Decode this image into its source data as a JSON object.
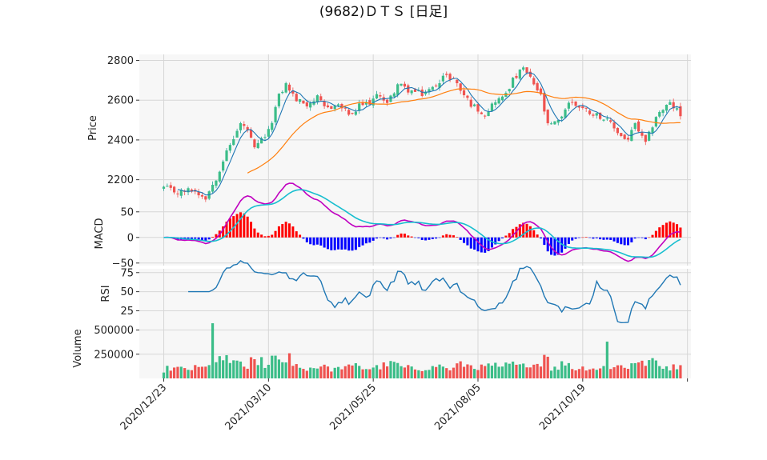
{
  "title": "(9682)ＤＴＳ [日足]",
  "colors": {
    "up": "#26a69a",
    "up_fill": "#3bbd88",
    "down": "#ef5350",
    "ma_short": "#1f77b4",
    "ma_long": "#ff7f0e",
    "macd": "#c000c0",
    "signal": "#17becf",
    "hist_pos": "#ff0000",
    "hist_neg": "#0000ff",
    "rsi": "#1f77b4",
    "vol_up": "#3bbd88",
    "vol_down": "#ef5350",
    "grid": "#d7d7d7",
    "panel_bg": "#f7f7f7"
  },
  "chart_data": [
    {
      "type": "candlestick",
      "name": "price",
      "ylabel": "Price",
      "ylim": [
        2090,
        2830
      ],
      "yticks": [
        2200,
        2400,
        2600,
        2800
      ],
      "xlim": [
        -7,
        151
      ],
      "xticks": [
        {
          "i": 0,
          "label": "2020/12/23"
        },
        {
          "i": 30,
          "label": "2021/03/10"
        },
        {
          "i": 60,
          "label": "2021/05/25"
        },
        {
          "i": 90,
          "label": "2021/08/05"
        },
        {
          "i": 120,
          "label": "2021/10/19"
        },
        {
          "i": 150,
          "label": ""
        }
      ],
      "close_anchors": [
        [
          0,
          2160
        ],
        [
          4,
          2135
        ],
        [
          8,
          2150
        ],
        [
          10,
          2130
        ],
        [
          12,
          2112
        ],
        [
          15,
          2210
        ],
        [
          17,
          2300
        ],
        [
          20,
          2410
        ],
        [
          22,
          2480
        ],
        [
          24,
          2450
        ],
        [
          26,
          2350
        ],
        [
          28,
          2400
        ],
        [
          30,
          2440
        ],
        [
          33,
          2620
        ],
        [
          35,
          2680
        ],
        [
          38,
          2600
        ],
        [
          41,
          2580
        ],
        [
          44,
          2610
        ],
        [
          46,
          2560
        ],
        [
          50,
          2575
        ],
        [
          54,
          2520
        ],
        [
          56,
          2570
        ],
        [
          59,
          2590
        ],
        [
          62,
          2630
        ],
        [
          64,
          2580
        ],
        [
          67,
          2680
        ],
        [
          70,
          2650
        ],
        [
          74,
          2630
        ],
        [
          77,
          2660
        ],
        [
          80,
          2720
        ],
        [
          83,
          2710
        ],
        [
          85,
          2650
        ],
        [
          88,
          2580
        ],
        [
          92,
          2530
        ],
        [
          95,
          2600
        ],
        [
          97,
          2610
        ],
        [
          100,
          2700
        ],
        [
          103,
          2760
        ],
        [
          106,
          2680
        ],
        [
          108,
          2620
        ],
        [
          110,
          2470
        ],
        [
          113,
          2490
        ],
        [
          116,
          2590
        ],
        [
          119,
          2570
        ],
        [
          122,
          2540
        ],
        [
          125,
          2520
        ],
        [
          128,
          2480
        ],
        [
          131,
          2420
        ],
        [
          133,
          2400
        ],
        [
          135,
          2480
        ],
        [
          137,
          2410
        ],
        [
          138,
          2380
        ],
        [
          141,
          2520
        ],
        [
          144,
          2570
        ],
        [
          145,
          2580
        ],
        [
          147,
          2550
        ],
        [
          148,
          2520
        ]
      ],
      "ma_short_label": "",
      "ma_long_label": ""
    },
    {
      "type": "line",
      "name": "macd",
      "ylabel": "MACD",
      "ylim": [
        -55,
        70
      ],
      "yticks": [
        50,
        0,
        -50
      ]
    },
    {
      "type": "line",
      "name": "rsi",
      "ylabel": "RSI",
      "ylim": [
        15,
        80
      ],
      "yticks": [
        75,
        50,
        25
      ]
    },
    {
      "type": "bar",
      "name": "volume",
      "ylabel": "Volume",
      "ylim": [
        0,
        620000
      ],
      "yticks": [
        250000,
        500000
      ]
    }
  ]
}
